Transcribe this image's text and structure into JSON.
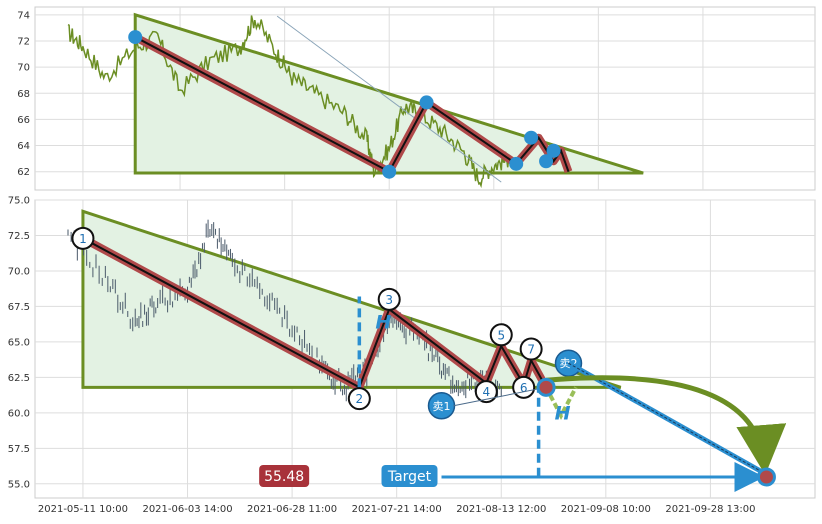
{
  "chart_data": [
    {
      "panel": "top",
      "type": "line",
      "title": "",
      "xlabel": "",
      "ylabel": "",
      "ylim": [
        60.6,
        74.6
      ],
      "yticks": [
        "74",
        "72",
        "70",
        "68",
        "66",
        "64",
        "62"
      ],
      "ytick_values": [
        74,
        72,
        70,
        68,
        66,
        64,
        62
      ],
      "grid": true,
      "colors": {
        "price": "#6b8e23",
        "zigzag": "#b0494a",
        "triangle": "#6b8e23",
        "fill": "#e3f2e3",
        "marker": "#2b8fd0"
      },
      "price_anchors": [
        [
          0.0,
          72.7
        ],
        [
          0.02,
          71.6
        ],
        [
          0.05,
          69.2
        ],
        [
          0.09,
          71.5
        ],
        [
          0.12,
          72.3
        ],
        [
          0.15,
          68.2
        ],
        [
          0.19,
          70.5
        ],
        [
          0.23,
          71.5
        ],
        [
          0.25,
          73.8
        ],
        [
          0.28,
          71.0
        ],
        [
          0.3,
          69.2
        ],
        [
          0.33,
          68.0
        ],
        [
          0.37,
          66.5
        ],
        [
          0.4,
          64.5
        ],
        [
          0.41,
          62.0
        ],
        [
          0.43,
          63.8
        ],
        [
          0.45,
          67.0
        ],
        [
          0.47,
          66.5
        ],
        [
          0.5,
          65.2
        ],
        [
          0.53,
          63.5
        ],
        [
          0.55,
          61.5
        ],
        [
          0.57,
          62.5
        ],
        [
          0.59,
          63.0
        ]
      ],
      "zigzag": [
        [
          0.09,
          72.3
        ],
        [
          0.43,
          62.0
        ],
        [
          0.48,
          67.3
        ],
        [
          0.6,
          62.6
        ],
        [
          0.63,
          64.6
        ],
        [
          0.65,
          62.8
        ],
        [
          0.66,
          63.6
        ],
        [
          0.67,
          62.0
        ]
      ],
      "markers": [
        [
          0.09,
          72.3
        ],
        [
          0.43,
          62.0
        ],
        [
          0.48,
          67.3
        ],
        [
          0.6,
          62.6
        ],
        [
          0.62,
          64.6
        ],
        [
          0.64,
          62.8
        ],
        [
          0.65,
          63.6
        ]
      ],
      "triangle": [
        [
          0.09,
          74.0
        ],
        [
          0.09,
          61.9
        ],
        [
          0.77,
          61.9
        ]
      ],
      "channel": [
        [
          0.28,
          73.9
        ],
        [
          0.58,
          61.2
        ]
      ]
    },
    {
      "panel": "bottom",
      "type": "scatter",
      "title": "",
      "xlabel": "",
      "ylabel": "",
      "ylim": [
        54.0,
        75.0
      ],
      "yticks": [
        "75.0",
        "72.5",
        "70.0",
        "67.5",
        "65.0",
        "62.5",
        "60.0",
        "57.5",
        "55.0"
      ],
      "ytick_values": [
        75.0,
        72.5,
        70.0,
        67.5,
        65.0,
        62.5,
        60.0,
        57.5,
        55.0
      ],
      "xticks": [
        "2021-05-11 10:00",
        "2021-06-03 14:00",
        "2021-06-28 11:00",
        "2021-07-21 14:00",
        "2021-08-13 12:00",
        "2021-09-08 10:00",
        "2021-09-28 13:00"
      ],
      "grid": true,
      "colors": {
        "candles": "#4a5a6a",
        "zigzag": "#b0494a",
        "triangle": "#6b8e23",
        "fill": "#e3f2e3",
        "target": "#2b8fd0",
        "price_box": "#a8323a"
      },
      "price_anchors": [
        [
          0.0,
          72.3
        ],
        [
          0.05,
          69.5
        ],
        [
          0.09,
          66.3
        ],
        [
          0.12,
          67.8
        ],
        [
          0.16,
          68.5
        ],
        [
          0.19,
          73.0
        ],
        [
          0.22,
          70.5
        ],
        [
          0.26,
          68.5
        ],
        [
          0.3,
          66.0
        ],
        [
          0.34,
          63.2
        ],
        [
          0.37,
          61.8
        ],
        [
          0.4,
          63.0
        ],
        [
          0.43,
          66.5
        ],
        [
          0.46,
          65.8
        ],
        [
          0.49,
          64.0
        ],
        [
          0.52,
          61.8
        ],
        [
          0.55,
          62.5
        ],
        [
          0.58,
          61.5
        ]
      ],
      "zigzag": [
        [
          0.02,
          72.3
        ],
        [
          0.39,
          61.8
        ],
        [
          0.43,
          67.3
        ],
        [
          0.56,
          62.1
        ],
        [
          0.58,
          64.7
        ],
        [
          0.61,
          62.0
        ],
        [
          0.62,
          63.7
        ],
        [
          0.64,
          61.8
        ]
      ],
      "points": [
        {
          "label": "1",
          "x": 0.02,
          "y": 72.3
        },
        {
          "label": "2",
          "x": 0.39,
          "y": 61.0
        },
        {
          "label": "3",
          "x": 0.43,
          "y": 68.0
        },
        {
          "label": "4",
          "x": 0.56,
          "y": 61.5
        },
        {
          "label": "5",
          "x": 0.58,
          "y": 65.5
        },
        {
          "label": "6",
          "x": 0.61,
          "y": 61.8
        },
        {
          "label": "7",
          "x": 0.62,
          "y": 64.5
        }
      ],
      "triangle": [
        [
          0.02,
          74.2
        ],
        [
          0.02,
          61.8
        ],
        [
          0.74,
          61.8
        ]
      ],
      "projection": [
        [
          0.64,
          61.8
        ],
        [
          0.66,
          59.8
        ],
        [
          0.68,
          61.8
        ]
      ],
      "height_lines": [
        {
          "label": "H",
          "x": 0.39,
          "y_from": 61.8,
          "y_to": 68.2
        },
        {
          "label": "H",
          "x": 0.63,
          "y_from": 55.5,
          "y_to": 61.8
        }
      ],
      "signals": [
        {
          "label": "卖1",
          "x": 0.5,
          "y": 60.5
        },
        {
          "label": "卖2",
          "x": 0.67,
          "y": 63.5
        }
      ],
      "target_y": 55.48,
      "target_value": "55.48",
      "target_label": "Target"
    }
  ]
}
